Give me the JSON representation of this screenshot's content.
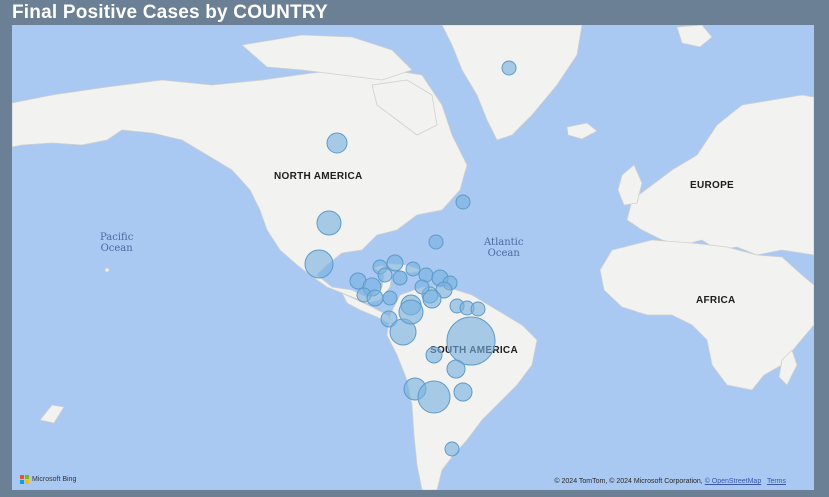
{
  "visual": {
    "title": "Final Positive Cases by COUNTRY"
  },
  "map": {
    "region_labels": {
      "north_america": "NORTH AMERICA",
      "south_america": "SOUTH AMERICA",
      "europe": "EUROPE",
      "africa": "AFRICA"
    },
    "ocean_labels": {
      "pacific_line1": "Pacific",
      "pacific_line2": "Ocean",
      "atlantic_line1": "Atlantic",
      "atlantic_line2": "Ocean"
    },
    "attribution": {
      "text": "© 2024 TomTom, © 2024 Microsoft Corporation,",
      "osm_link": "© OpenStreetMap",
      "terms_link": "Terms"
    },
    "bing_label": "Microsoft Bing",
    "colors": {
      "water": "#a9c8f2",
      "land": "#f2f2f0",
      "bubble": "#78b2e0",
      "header": "#6b7f95"
    }
  }
}
